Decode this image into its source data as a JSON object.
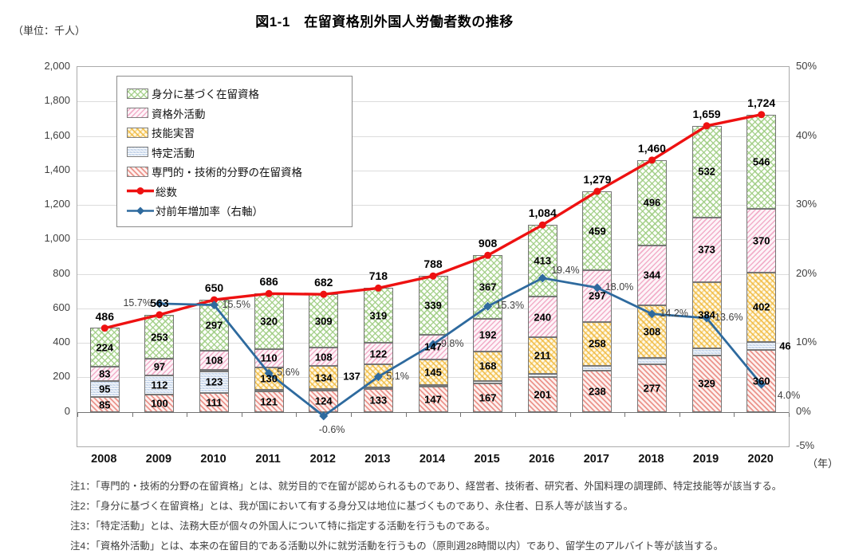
{
  "header": {
    "unit_label": "（単位：千人）",
    "title": "図1-1　在留資格別外国人労働者数の推移"
  },
  "colors": {
    "total_line": "#ee1111",
    "rate_line": "#2e6a9e",
    "grid": "#dcdcdc",
    "axis": "#737373",
    "mibun_hatch": "#9ecc82",
    "shikakugai_hatch": "#ee96b9",
    "ginou_hatch": "#f0b738",
    "tokutei_fill": "#d9e4f1",
    "senmon_hatch": "#e77d74"
  },
  "legend": {
    "items": [
      {
        "key": "mibun",
        "type": "pattern",
        "label": "身分に基づく在留資格"
      },
      {
        "key": "shikakugai",
        "type": "pattern",
        "label": "資格外活動"
      },
      {
        "key": "ginou",
        "type": "pattern",
        "label": "技能実習"
      },
      {
        "key": "tokutei",
        "type": "pattern",
        "label": "特定活動"
      },
      {
        "key": "senmon",
        "type": "pattern",
        "label": "専門的・技術的分野の在留資格"
      },
      {
        "key": "total",
        "type": "line-circle",
        "label": "総数"
      },
      {
        "key": "rate",
        "type": "line-diamond",
        "label": "対前年増加率（右軸）"
      }
    ]
  },
  "chart_data": {
    "type": "combo: stacked-bar + line (left axis, thousands) + line (right axis, %)",
    "categories": [
      "2008",
      "2009",
      "2010",
      "2011",
      "2012",
      "2013",
      "2014",
      "2015",
      "2016",
      "2017",
      "2018",
      "2019",
      "2020"
    ],
    "x_axis_unit": "（年）",
    "left_axis": {
      "tick_labels": [
        "2,000",
        "1,800",
        "1,600",
        "1,400",
        "1,200",
        "1,000",
        "800",
        "600",
        "400",
        "200",
        "0"
      ],
      "tick_values": [
        2000,
        1800,
        1600,
        1400,
        1200,
        1000,
        800,
        600,
        400,
        200,
        0
      ],
      "plot_min": -200,
      "plot_max": 2000,
      "grid": true
    },
    "right_axis": {
      "tick_labels": [
        "50%",
        "40%",
        "30%",
        "20%",
        "10%",
        "0%",
        "-5%"
      ],
      "tick_values": [
        50,
        40,
        30,
        20,
        10,
        0,
        -5
      ],
      "min": -5,
      "max": 50
    },
    "bar_series_bottom_to_top": [
      {
        "key": "senmon",
        "name": "専門的・技術的分野の在留資格",
        "values": [
          85,
          100,
          111,
          121,
          124,
          133,
          147,
          167,
          201,
          238,
          277,
          329,
          360
        ],
        "labels": [
          "85",
          "100",
          "111",
          "121",
          "124",
          "133",
          "147",
          "167",
          "201",
          "238",
          "277",
          "329",
          "360"
        ],
        "label_overrides": {}
      },
      {
        "key": "tokutei",
        "name": "特定活動",
        "values": [
          95,
          112,
          123,
          5,
          7,
          7,
          10,
          14,
          19,
          27,
          35,
          41,
          46
        ],
        "labels": [
          "95",
          "112",
          "123",
          null,
          null,
          null,
          null,
          null,
          null,
          null,
          null,
          null,
          "46"
        ],
        "label_overrides": {
          "12": "outside-right"
        }
      },
      {
        "key": "ginou",
        "name": "技能実習",
        "values": [
          0,
          0,
          11,
          130,
          134,
          137,
          145,
          168,
          211,
          258,
          308,
          384,
          402
        ],
        "labels": [
          null,
          null,
          null,
          "130",
          "134",
          "137",
          "145",
          "168",
          "211",
          "258",
          "308",
          "384",
          "402"
        ],
        "label_overrides": {
          "5": "outside-left"
        }
      },
      {
        "key": "shikakugai",
        "name": "資格外活動",
        "values": [
          83,
          97,
          108,
          110,
          108,
          122,
          147,
          192,
          240,
          297,
          344,
          373,
          370
        ],
        "labels": [
          "83",
          "97",
          "108",
          "110",
          "108",
          "122",
          "147",
          "192",
          "240",
          "297",
          "344",
          "373",
          "370"
        ],
        "label_overrides": {}
      },
      {
        "key": "mibun",
        "name": "身分に基づく在留資格",
        "values": [
          224,
          253,
          297,
          320,
          309,
          319,
          339,
          367,
          413,
          459,
          496,
          532,
          546
        ],
        "labels": [
          "224",
          "253",
          "297",
          "320",
          "309",
          "319",
          "339",
          "367",
          "413",
          "459",
          "496",
          "532",
          "546"
        ],
        "label_overrides": {}
      }
    ],
    "line_series": [
      {
        "key": "total",
        "name": "総数",
        "axis": "left",
        "start_index": 0,
        "values": [
          486,
          563,
          650,
          686,
          682,
          718,
          788,
          908,
          1084,
          1279,
          1460,
          1659,
          1724
        ],
        "labels": [
          "486",
          "563",
          "650",
          "686",
          "682",
          "718",
          "788",
          "908",
          "1,084",
          "1,279",
          "1,460",
          "1,659",
          "1,724"
        ],
        "label_position": "above"
      },
      {
        "key": "rate",
        "name": "対前年増加率（右軸）",
        "axis": "right",
        "start_index": 1,
        "values": [
          15.7,
          15.5,
          5.6,
          -0.6,
          5.1,
          9.8,
          15.3,
          19.4,
          18.0,
          14.2,
          13.6,
          4.0
        ],
        "labels": [
          "15.7%",
          "15.5%",
          "5.6%",
          "-0.6%",
          "5.1%",
          "9.8%",
          "15.3%",
          "19.4%",
          "18.0%",
          "14.2%",
          "13.6%",
          "4.0%"
        ],
        "label_sides": [
          "left",
          "right",
          "right",
          "below",
          "right",
          "right",
          "right",
          "right-up",
          "right",
          "right",
          "right",
          "below-right"
        ]
      }
    ]
  },
  "notes": [
    "注1：「専門的・技術的分野の在留資格」とは、就労目的で在留が認められるものであり、経営者、技術者、研究者、外国料理の調理師、特定技能等が該当する。",
    "注2：「身分に基づく在留資格」とは、我が国において有する身分又は地位に基づくものであり、永住者、日系人等が該当する。",
    "注3：「特定活動」とは、法務大臣が個々の外国人について特に指定する活動を行うものである。",
    "注4：「資格外活動」とは、本来の在留目的である活動以外に就労活動を行うもの（原則週28時間以内）であり、留学生のアルバイト等が該当する。"
  ]
}
